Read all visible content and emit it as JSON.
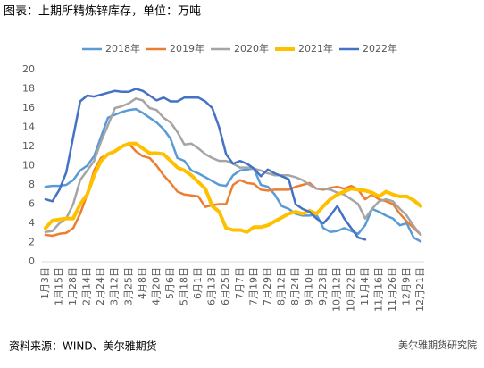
{
  "chart_data": {
    "type": "line",
    "title": "图表：上期所精炼锌库存，单位：万吨",
    "source": "资料来源：WIND、美尔雅期货",
    "watermark": "美尔雅期货研究院",
    "categories": [
      "1月3日",
      null,
      "1月15日",
      null,
      "1月28日",
      null,
      "2月14日",
      null,
      "2月24日",
      null,
      "3月12日",
      null,
      "3月25日",
      null,
      "4月8日",
      null,
      "4月20日",
      null,
      "5月6日",
      null,
      "5月18日",
      null,
      "6月1日",
      null,
      "6月13日",
      null,
      "6月25日",
      null,
      "7月7日",
      null,
      "7月19日",
      null,
      "7月29日",
      null,
      "8月12日",
      null,
      "8月24日",
      null,
      "9月10日",
      null,
      "9月23日",
      null,
      "10月12日",
      null,
      "10月22日",
      null,
      "11月4日",
      null,
      "11月16日",
      null,
      "11月26日",
      null,
      "12月9日",
      null,
      "12月21日"
    ],
    "series": [
      {
        "name": "2018年",
        "color": "#5b9bd5",
        "values": [
          7.8,
          7.9,
          7.9,
          8.0,
          8.5,
          9.5,
          10.0,
          11.0,
          13.0,
          15.0,
          15.3,
          15.6,
          15.8,
          15.9,
          15.5,
          15.0,
          14.5,
          13.8,
          12.8,
          10.8,
          10.5,
          9.5,
          9.2,
          8.8,
          8.4,
          8.0,
          7.9,
          9.0,
          9.5,
          9.6,
          9.7,
          8.0,
          7.8,
          7.0,
          5.8,
          5.5,
          5.0,
          4.8,
          4.8,
          4.9,
          3.5,
          3.1,
          3.2,
          3.5,
          3.2,
          2.9,
          3.8,
          5.5,
          5.2,
          4.8,
          4.5,
          3.8,
          4.0,
          2.5,
          2.1
        ]
      },
      {
        "name": "2019年",
        "color": "#ed7d31",
        "values": [
          2.8,
          2.7,
          2.9,
          3.0,
          3.5,
          5.0,
          7.0,
          9.5,
          10.8,
          11.2,
          11.5,
          12.0,
          12.3,
          11.5,
          11.0,
          10.8,
          10.0,
          9.0,
          8.2,
          7.3,
          7.0,
          6.9,
          6.8,
          5.7,
          5.9,
          6.0,
          6.0,
          8.0,
          8.5,
          8.2,
          8.1,
          7.5,
          7.4,
          7.5,
          7.5,
          7.5,
          7.8,
          8.0,
          8.2,
          7.6,
          7.5,
          7.7,
          7.8,
          7.6,
          7.9,
          7.5,
          6.5,
          7.0,
          6.5,
          6.3,
          6.0,
          5.0,
          4.2,
          3.5,
          2.8
        ]
      },
      {
        "name": "2020年",
        "color": "#a5a5a5",
        "values": [
          3.1,
          3.2,
          4.0,
          4.5,
          6.0,
          8.5,
          9.5,
          10.5,
          12.5,
          14.2,
          16.0,
          16.2,
          16.5,
          17.0,
          16.8,
          16.0,
          15.8,
          15.0,
          14.5,
          13.5,
          12.2,
          12.3,
          11.8,
          11.2,
          10.8,
          10.5,
          10.5,
          10.2,
          9.8,
          9.8,
          9.7,
          9.5,
          9.2,
          9.0,
          9.0,
          9.0,
          8.8,
          8.5,
          8.0,
          7.6,
          7.6,
          7.5,
          7.2,
          7.0,
          6.5,
          6.0,
          4.5,
          5.5,
          6.3,
          6.5,
          6.3,
          5.5,
          4.8,
          3.7,
          2.8
        ]
      },
      {
        "name": "2021年",
        "color": "#ffc000",
        "values": [
          3.5,
          4.3,
          4.4,
          4.5,
          4.5,
          6.0,
          7.0,
          9.0,
          10.5,
          11.2,
          11.5,
          12.0,
          12.3,
          12.3,
          11.8,
          11.3,
          11.3,
          11.2,
          10.5,
          9.8,
          9.5,
          9.0,
          8.3,
          7.6,
          5.8,
          5.2,
          3.5,
          3.3,
          3.3,
          3.1,
          3.6,
          3.6,
          3.8,
          4.2,
          4.6,
          5.0,
          5.2,
          5.0,
          5.3,
          5.0,
          5.8,
          6.5,
          7.0,
          7.3,
          7.6,
          7.5,
          7.4,
          7.2,
          6.8,
          7.3,
          7.0,
          6.8,
          6.8,
          6.4,
          5.8
        ]
      },
      {
        "name": "2022年",
        "color": "#4472c4",
        "values": [
          6.5,
          6.3,
          7.5,
          9.3,
          13.0,
          16.7,
          17.3,
          17.2,
          17.4,
          17.6,
          17.8,
          17.7,
          17.7,
          18.0,
          17.8,
          17.3,
          16.8,
          17.1,
          16.7,
          16.7,
          17.1,
          17.1,
          17.1,
          16.7,
          16.0,
          14.0,
          11.2,
          10.2,
          10.5,
          10.2,
          9.7,
          8.9,
          9.6,
          9.2,
          8.9,
          8.6,
          6.0,
          5.5,
          5.2,
          4.5,
          4.0,
          4.8,
          5.8,
          4.5,
          3.5,
          2.5,
          2.3,
          null,
          null,
          null,
          null,
          null,
          null,
          null,
          null
        ]
      }
    ],
    "ylim": [
      0,
      20
    ],
    "yticks": [
      0,
      2,
      4,
      6,
      8,
      10,
      12,
      14,
      16,
      18,
      20
    ],
    "grid": false
  }
}
